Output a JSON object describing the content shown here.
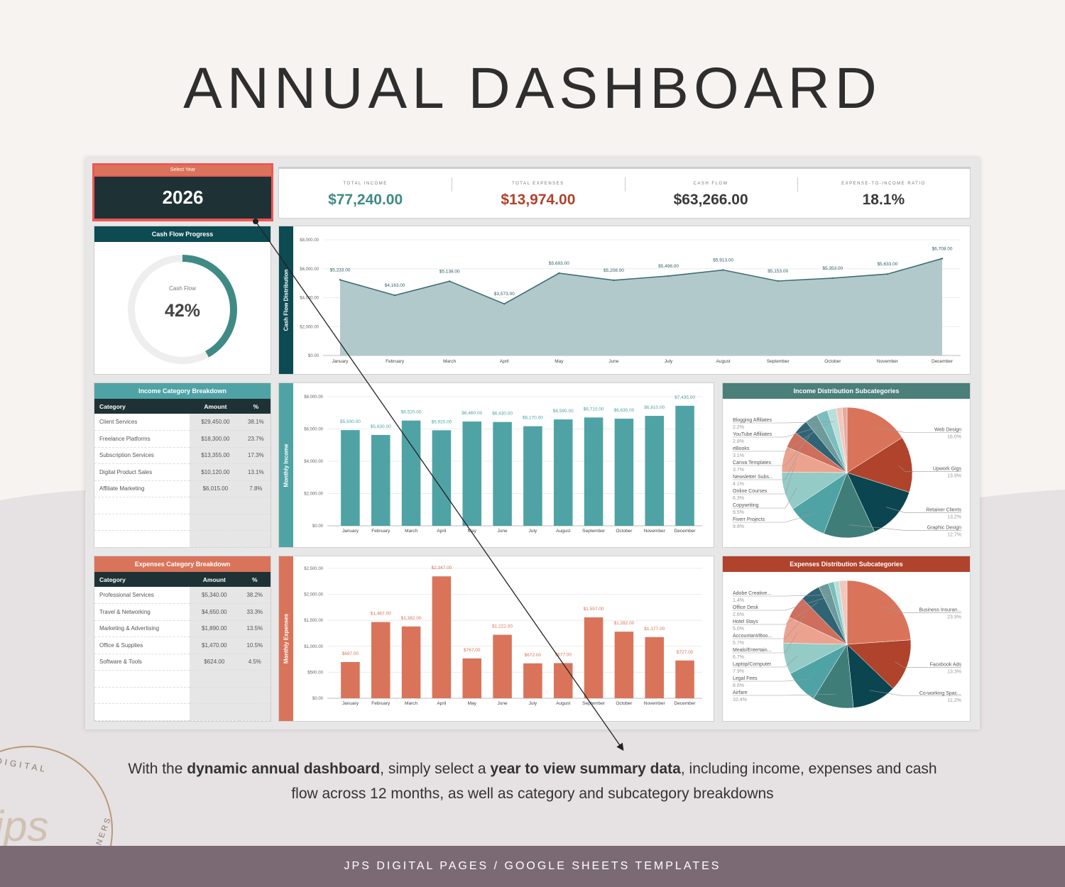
{
  "page_title": "ANNUAL DASHBOARD",
  "select_year": {
    "label": "Select Year",
    "value": "2026"
  },
  "kpis": [
    {
      "label": "TOTAL INCOME",
      "value": "$77,240.00",
      "color": "#3f8a85"
    },
    {
      "label": "TOTAL EXPENSES",
      "value": "$13,974.00",
      "color": "#b0432c"
    },
    {
      "label": "CASH FLOW",
      "value": "$63,266.00",
      "color": "#3a3a3a"
    },
    {
      "label": "EXPENSE-TO-INCOME RATIO",
      "value": "18.1%",
      "color": "#3a3a3a"
    }
  ],
  "cash_flow_progress": {
    "title": "Cash Flow Progress",
    "label": "Cash Flow",
    "value_text": "42%",
    "percent": 42
  },
  "income_table": {
    "title": "Income Category Breakdown",
    "headers": [
      "Category",
      "Amount",
      "%"
    ],
    "rows": [
      [
        "Client Services",
        "$29,450.00",
        "38.1%"
      ],
      [
        "Freelance Platforms",
        "$18,300.00",
        "23.7%"
      ],
      [
        "Subscription Services",
        "$13,355.00",
        "17.3%"
      ],
      [
        "Digital Product Sales",
        "$10,120.00",
        "13.1%"
      ],
      [
        "Affiliate Marketing",
        "$6,015.00",
        "7.8%"
      ]
    ]
  },
  "expenses_table": {
    "title": "Expenses Category Breakdown",
    "headers": [
      "Category",
      "Amount",
      "%"
    ],
    "rows": [
      [
        "Professional Services",
        "$5,340.00",
        "38.2%"
      ],
      [
        "Travel & Networking",
        "$4,650.00",
        "33.3%"
      ],
      [
        "Marketing & Advertising",
        "$1,890.00",
        "13.5%"
      ],
      [
        "Office & Supplies",
        "$1,470.00",
        "10.5%"
      ],
      [
        "Software & Tools",
        "$624.00",
        "4.5%"
      ]
    ]
  },
  "chart_data": [
    {
      "id": "cashflow",
      "type": "area",
      "title": "Cash Flow Distribution",
      "ylabel": "Cash Flow Distribution",
      "categories": [
        "January",
        "February",
        "March",
        "April",
        "May",
        "June",
        "July",
        "August",
        "September",
        "October",
        "November",
        "December"
      ],
      "values": [
        5233,
        4163,
        5138,
        3573,
        5693,
        5208,
        5498,
        5913,
        5153,
        5353,
        5633,
        6708
      ],
      "labels": [
        "$5,233.00",
        "$4,163.00",
        "$5,138.00",
        "$3,573.00",
        "$5,693.00",
        "$5,208.00",
        "$5,498.00",
        "$5,913.00",
        "$5,153.00",
        "$5,353.00",
        "$5,633.00",
        "$6,708.00"
      ],
      "ylim": [
        0,
        8000
      ],
      "yticks": [
        "$0.00",
        "$2,000.00",
        "$4,000.00",
        "$6,000.00",
        "$8,000.00"
      ],
      "color": "#3f6f74",
      "fill": "#b2c9cc",
      "strip": "#0d4a52"
    },
    {
      "id": "income",
      "type": "bar",
      "title": "Monthly Income",
      "ylabel": "Monthly Income",
      "categories": [
        "January",
        "February",
        "March",
        "April",
        "May",
        "June",
        "July",
        "August",
        "September",
        "October",
        "November",
        "December"
      ],
      "values": [
        5930,
        5630,
        6520,
        5920,
        6460,
        6430,
        6170,
        6590,
        6710,
        6635,
        6810,
        7435
      ],
      "labels": [
        "$5,930.00",
        "$5,630.00",
        "$6,520.00",
        "$5,920.00",
        "$6,460.00",
        "$6,430.00",
        "$6,170.00",
        "$6,590.00",
        "$6,710.00",
        "$6,635.00",
        "$6,810.00",
        "$7,435.00"
      ],
      "ylim": [
        0,
        8000
      ],
      "yticks": [
        "$0.00",
        "$2,000.00",
        "$4,000.00",
        "$6,000.00",
        "$8,000.00"
      ],
      "color": "#4fa3a5",
      "strip": "#4fa3a5"
    },
    {
      "id": "expenses",
      "type": "bar",
      "title": "Monthly Expenses",
      "ylabel": "Monthly Expenses",
      "categories": [
        "January",
        "February",
        "March",
        "April",
        "May",
        "June",
        "July",
        "August",
        "September",
        "October",
        "November",
        "December"
      ],
      "values": [
        697,
        1467,
        1382,
        2347,
        767,
        1222,
        672,
        677,
        1557,
        1282,
        1177,
        727
      ],
      "labels": [
        "$697.00",
        "$1,467.00",
        "$1,382.00",
        "$2,347.00",
        "$767.00",
        "$1,222.00",
        "$672.00",
        "$677.00",
        "$1,557.00",
        "$1,282.00",
        "$1,177.00",
        "$727.00"
      ],
      "ylim": [
        0,
        2500
      ],
      "yticks": [
        "$0.00",
        "$500.00",
        "$1,000.00",
        "$1,500.00",
        "$2,000.00",
        "$2,500.00"
      ],
      "color": "#d9745a",
      "strip": "#d9745a"
    },
    {
      "id": "income_pie",
      "type": "pie",
      "title": "Income Distribution Subcategories",
      "header_color": "#4a7f7a",
      "slices": [
        {
          "name": "Web Design",
          "value": 16.0,
          "label": "16.0%",
          "color": "#d9745a"
        },
        {
          "name": "Upwork Gigs",
          "value": 13.9,
          "label": "13.9%",
          "color": "#b0432c"
        },
        {
          "name": "Retainer Clients",
          "value": 13.2,
          "label": "13.2%",
          "color": "#0b4550"
        },
        {
          "name": "Graphic Design",
          "value": 12.7,
          "label": "12.7%",
          "color": "#3f7d78"
        },
        {
          "name": "Fiverr Projects",
          "value": 9.8,
          "label": "9.8%",
          "color": "#4fa3a5"
        },
        {
          "name": "Copywriting",
          "value": 9.5,
          "label": "9.5%",
          "color": "#94cbc6"
        },
        {
          "name": "Online Courses",
          "value": 6.3,
          "label": "6.3%",
          "color": "#eba390"
        },
        {
          "name": "Newsletter Subs...",
          "value": 4.1,
          "label": "4.1%",
          "color": "#cf6e5c"
        },
        {
          "name": "Canva Templates",
          "value": 3.7,
          "label": "3.7%",
          "color": "#2f6474"
        },
        {
          "name": "eBooks",
          "value": 3.1,
          "label": "3.1%",
          "color": "#6d9a9b"
        },
        {
          "name": "YouTube Affiliates",
          "value": 2.8,
          "label": "2.8%",
          "color": "#7cbdbd"
        },
        {
          "name": "Blogging Affiliates",
          "value": 2.2,
          "label": "2.2%",
          "color": "#b9dfdb"
        },
        {
          "name": "",
          "value": 1.5,
          "label": "",
          "color": "#f3c6bd"
        },
        {
          "name": "",
          "value": 1.2,
          "label": "",
          "color": "#e3aaa0"
        }
      ]
    },
    {
      "id": "expenses_pie",
      "type": "pie",
      "title": "Expenses Distribution Subcategories",
      "header_color": "#b0432c",
      "slices": [
        {
          "name": "Business Insuran...",
          "value": 23.9,
          "label": "23.9%",
          "color": "#d9745a"
        },
        {
          "name": "Facebook Ads",
          "value": 13.3,
          "label": "13.3%",
          "color": "#b0432c"
        },
        {
          "name": "Co-working Spac...",
          "value": 11.2,
          "label": "11.2%",
          "color": "#0b4550"
        },
        {
          "name": "Airfare",
          "value": 10.4,
          "label": "10.4%",
          "color": "#3f7d78"
        },
        {
          "name": "Legal Fees",
          "value": 8.6,
          "label": "8.6%",
          "color": "#4fa3a5"
        },
        {
          "name": "Laptop/Computer",
          "value": 7.9,
          "label": "7.9%",
          "color": "#94cbc6"
        },
        {
          "name": "Meals/Entertain...",
          "value": 6.7,
          "label": "6.7%",
          "color": "#eba390"
        },
        {
          "name": "Accountant/Boo...",
          "value": 5.7,
          "label": "5.7%",
          "color": "#cf6e5c"
        },
        {
          "name": "Hotel Stays",
          "value": 5.0,
          "label": "5.0%",
          "color": "#2f6474"
        },
        {
          "name": "Office Desk",
          "value": 2.6,
          "label": "2.6%",
          "color": "#6d9a9b"
        },
        {
          "name": "Adobe Creative...",
          "value": 1.4,
          "label": "1.4%",
          "color": "#7cbdbd"
        },
        {
          "name": "",
          "value": 1.3,
          "label": "",
          "color": "#b9dfdb"
        },
        {
          "name": "",
          "value": 2.0,
          "label": "",
          "color": "#f3c6bd"
        }
      ]
    }
  ],
  "caption": {
    "parts": [
      {
        "text": "With the ",
        "bold": false
      },
      {
        "text": "dynamic annual dashboard",
        "bold": true
      },
      {
        "text": ", simply select a ",
        "bold": false
      },
      {
        "text": "year to view summary data",
        "bold": true
      },
      {
        "text": ", including income, expenses and cash flow across 12 months, as well as category and subcategory breakdowns",
        "bold": false
      }
    ]
  },
  "footer": "JPS DIGITAL PAGES / GOOGLE SHEETS TEMPLATES",
  "logo": {
    "text_top": "DIGITAL",
    "text_side": "PLANNERS",
    "monogram": "jps"
  }
}
